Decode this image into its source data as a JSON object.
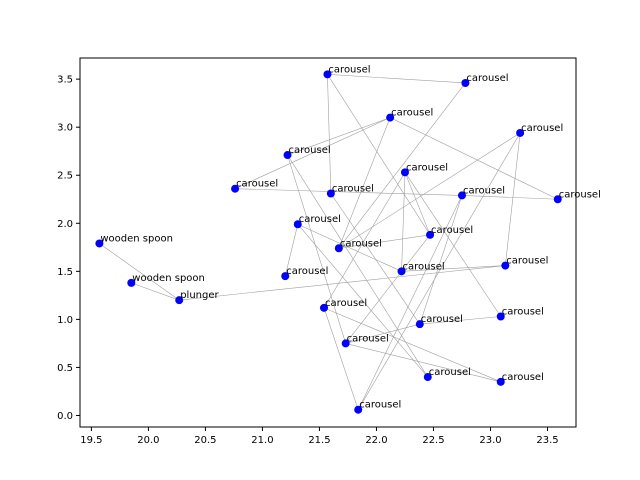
{
  "chart_data": {
    "type": "scatter",
    "title": "",
    "xlabel": "",
    "ylabel": "",
    "xlim": [
      19.4,
      23.75
    ],
    "ylim": [
      -0.12,
      3.72
    ],
    "xticks": [
      19.5,
      20.0,
      20.5,
      21.0,
      21.5,
      22.0,
      22.5,
      23.0,
      23.5
    ],
    "xtick_labels": [
      "19.5",
      "20.0",
      "20.5",
      "21.0",
      "21.5",
      "22.0",
      "22.5",
      "23.0",
      "23.5"
    ],
    "yticks": [
      0.0,
      0.5,
      1.0,
      1.5,
      2.0,
      2.5,
      3.0,
      3.5
    ],
    "ytick_labels": [
      "0.0",
      "0.5",
      "1.0",
      "1.5",
      "2.0",
      "2.5",
      "3.0",
      "3.5"
    ],
    "grid": false,
    "point_color": "#0000ff",
    "edge_color": "#a0a0a0",
    "points": [
      {
        "x": 19.57,
        "y": 1.79,
        "label": "wooden spoon"
      },
      {
        "x": 19.85,
        "y": 1.38,
        "label": "wooden spoon"
      },
      {
        "x": 20.27,
        "y": 1.2,
        "label": "plunger"
      },
      {
        "x": 20.76,
        "y": 2.36,
        "label": "carousel"
      },
      {
        "x": 21.2,
        "y": 1.45,
        "label": "carousel"
      },
      {
        "x": 21.22,
        "y": 2.71,
        "label": "carousel"
      },
      {
        "x": 21.31,
        "y": 1.99,
        "label": "carousel"
      },
      {
        "x": 21.54,
        "y": 1.12,
        "label": "carousel"
      },
      {
        "x": 21.57,
        "y": 3.55,
        "label": "carousel"
      },
      {
        "x": 21.6,
        "y": 2.31,
        "label": "carousel"
      },
      {
        "x": 21.67,
        "y": 1.74,
        "label": "carousel"
      },
      {
        "x": 21.73,
        "y": 0.75,
        "label": "carousel"
      },
      {
        "x": 21.84,
        "y": 0.06,
        "label": "carousel"
      },
      {
        "x": 22.12,
        "y": 3.1,
        "label": "carousel"
      },
      {
        "x": 22.22,
        "y": 1.5,
        "label": "carousel"
      },
      {
        "x": 22.25,
        "y": 2.53,
        "label": "carousel"
      },
      {
        "x": 22.38,
        "y": 0.95,
        "label": "carousel"
      },
      {
        "x": 22.45,
        "y": 0.4,
        "label": "carousel"
      },
      {
        "x": 22.47,
        "y": 1.88,
        "label": "carousel"
      },
      {
        "x": 22.75,
        "y": 2.29,
        "label": "carousel"
      },
      {
        "x": 22.78,
        "y": 3.46,
        "label": "carousel"
      },
      {
        "x": 23.09,
        "y": 1.03,
        "label": "carousel"
      },
      {
        "x": 23.09,
        "y": 0.35,
        "label": "carousel"
      },
      {
        "x": 23.13,
        "y": 1.56,
        "label": "carousel"
      },
      {
        "x": 23.26,
        "y": 2.94,
        "label": "carousel"
      },
      {
        "x": 23.59,
        "y": 2.25,
        "label": "carousel"
      }
    ],
    "edges": [
      [
        0,
        2
      ],
      [
        1,
        2
      ],
      [
        2,
        23
      ],
      [
        3,
        19
      ],
      [
        3,
        13
      ],
      [
        5,
        13
      ],
      [
        5,
        11
      ],
      [
        5,
        17
      ],
      [
        6,
        14
      ],
      [
        6,
        17
      ],
      [
        7,
        12
      ],
      [
        7,
        15
      ],
      [
        7,
        22
      ],
      [
        8,
        20
      ],
      [
        8,
        18
      ],
      [
        9,
        16
      ],
      [
        9,
        8
      ],
      [
        10,
        20
      ],
      [
        10,
        13
      ],
      [
        10,
        24
      ],
      [
        10,
        18
      ],
      [
        11,
        22
      ],
      [
        11,
        16
      ],
      [
        11,
        18
      ],
      [
        12,
        24
      ],
      [
        12,
        19
      ],
      [
        13,
        25
      ],
      [
        14,
        15
      ],
      [
        14,
        23
      ],
      [
        15,
        18
      ],
      [
        15,
        21
      ],
      [
        16,
        21
      ],
      [
        16,
        19
      ],
      [
        19,
        25
      ],
      [
        23,
        24
      ],
      [
        4,
        6
      ]
    ]
  }
}
